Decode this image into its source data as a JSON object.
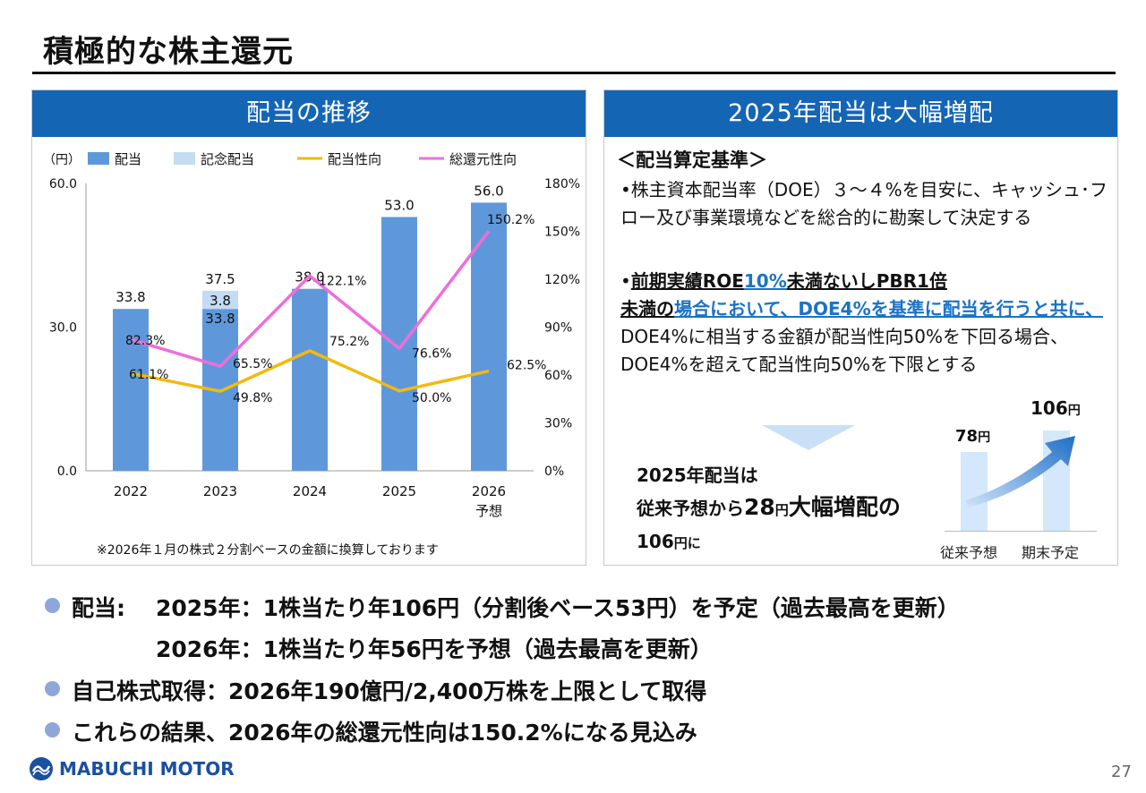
{
  "title": "積極的な株主還元",
  "left_panel": {
    "header": "配当の推移",
    "note": "※2026年１月の株式２分割ベースの金額に換算しております"
  },
  "chart_data": {
    "type": "bar",
    "unit_label": "（円）",
    "categories": [
      "2022",
      "2023",
      "2024",
      "2025",
      "2026"
    ],
    "category_sublabels": [
      "",
      "",
      "",
      "",
      "予想"
    ],
    "legend": [
      "配当",
      "記念配当",
      "配当性向",
      "総還元性向"
    ],
    "series": [
      {
        "name": "配当",
        "kind": "bar",
        "values": [
          33.8,
          33.8,
          38.0,
          53.0,
          56.0
        ],
        "color": "#5f98da"
      },
      {
        "name": "記念配当",
        "kind": "bar-stack",
        "values": [
          0,
          3.8,
          0,
          0,
          0
        ],
        "color": "#c3dbf3"
      },
      {
        "name": "配当性向",
        "kind": "line",
        "axis": "right",
        "values": [
          61.1,
          49.8,
          75.2,
          50.0,
          62.5
        ],
        "color": "#f2b90f"
      },
      {
        "name": "総還元性向",
        "kind": "line",
        "axis": "right",
        "values": [
          82.3,
          65.5,
          122.1,
          76.6,
          150.2
        ],
        "color": "#f06ddc"
      }
    ],
    "bar_total_labels": [
      "33.8",
      "37.5",
      "38.0",
      "53.0",
      "56.0"
    ],
    "bar_inner_labels": [
      "",
      "33.8",
      "",
      "",
      ""
    ],
    "stack_labels": [
      "",
      "3.8",
      "",
      "",
      ""
    ],
    "payout_labels": [
      "61.1%",
      "49.8%",
      "75.2%",
      "50.0%",
      "62.5%"
    ],
    "total_return_labels": [
      "82.3%",
      "65.5%",
      "122.1%",
      "76.6%",
      "150.2%"
    ],
    "ylim_left": [
      0,
      60
    ],
    "yticks_left": [
      "0.0",
      "30.0",
      "60.0"
    ],
    "ylim_right": [
      0,
      180
    ],
    "yticks_right": [
      "0%",
      "30%",
      "60%",
      "90%",
      "120%",
      "150%",
      "180%"
    ]
  },
  "right_panel": {
    "header": "2025年配当は大幅増配",
    "criteria_title": "＜配当算定基準＞",
    "criteria1": "•株主資本配当率（DOE）３～４%を目安に、キャッシュ･フロー及び事業環境などを総合的に勘案して決定する",
    "criteria2_bullet": "•",
    "criteria2_a": "前期実績ROE",
    "criteria2_b": "10%",
    "criteria2_c": "未満ないしPBR1倍",
    "criteria2_d": "未満の",
    "criteria2_e": "場合において、DOE4%を基準に配当を行うと共に、",
    "criteria2_f": "DOE4%に相当する金額が配当性向50%を下回る場合、DOE4%を超えて配当性向50%を下限とする",
    "result_line1": "2025年配当は",
    "result_a": "従来予想から",
    "result_b": "28",
    "result_c": "円",
    "result_d": "大幅増配の",
    "result_e": "106",
    "result_f": "円に",
    "mini": {
      "val1": "78",
      "val2": "106",
      "unit": "円",
      "label1": "従来予想",
      "label2": "期末予定",
      "values": [
        78,
        106
      ]
    }
  },
  "bullets": {
    "b1_label": "配当:",
    "b1_line1": "2025年：1株当たり年106円（分割後ベース53円）を予定（過去最高を更新）",
    "b1_line2": "2026年：1株当たり年56円を予想（過去最高を更新）",
    "b2": "自己株式取得：2026年190億円/2,400万株を上限として取得",
    "b3": "これらの結果、2026年の総還元性向は150.2%になる見込み"
  },
  "footer": {
    "logo_text": "MABUCHI MOTOR",
    "page": "27"
  },
  "colors": {
    "header_blue": "#1565b5",
    "bullet_dot": "#8ea7d8",
    "link_blue": "#1a73c7"
  }
}
